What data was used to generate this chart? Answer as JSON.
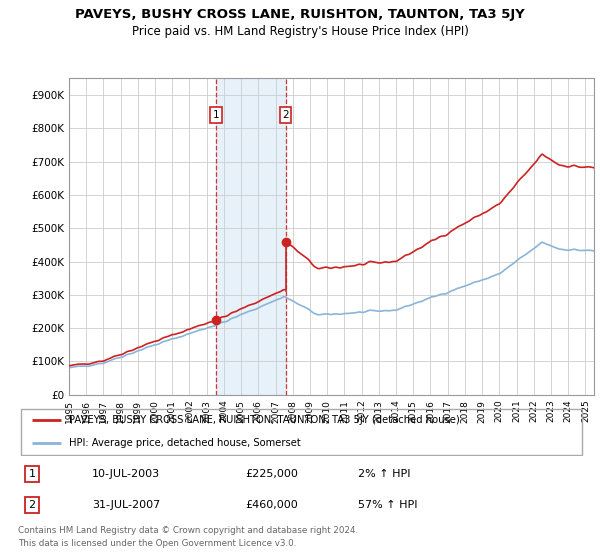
{
  "title": "PAVEYS, BUSHY CROSS LANE, RUISHTON, TAUNTON, TA3 5JY",
  "subtitle": "Price paid vs. HM Land Registry's House Price Index (HPI)",
  "title_fontsize": 9.5,
  "subtitle_fontsize": 8.5,
  "ylabel_ticks": [
    "£0",
    "£100K",
    "£200K",
    "£300K",
    "£400K",
    "£500K",
    "£600K",
    "£700K",
    "£800K",
    "£900K"
  ],
  "ytick_vals": [
    0,
    100000,
    200000,
    300000,
    400000,
    500000,
    600000,
    700000,
    800000,
    900000
  ],
  "ylim": [
    0,
    950000
  ],
  "xlim_start": 1995.0,
  "xlim_end": 2025.5,
  "hpi_color": "#8ab4d8",
  "price_color": "#cc2222",
  "transaction1_x": 2003.53,
  "transaction1_y": 225000,
  "transaction2_x": 2007.58,
  "transaction2_y": 460000,
  "shade_color": "#d8e8f5",
  "shade_alpha": 0.6,
  "legend_property_label": "PAVEYS, BUSHY CROSS LANE, RUISHTON, TAUNTON, TA3 5JY (detached house)",
  "legend_hpi_label": "HPI: Average price, detached house, Somerset",
  "footer1": "Contains HM Land Registry data © Crown copyright and database right 2024.",
  "footer2": "This data is licensed under the Open Government Licence v3.0.",
  "table_row1": [
    "1",
    "10-JUL-2003",
    "£225,000",
    "2% ↑ HPI"
  ],
  "table_row2": [
    "2",
    "31-JUL-2007",
    "£460,000",
    "57% ↑ HPI"
  ]
}
